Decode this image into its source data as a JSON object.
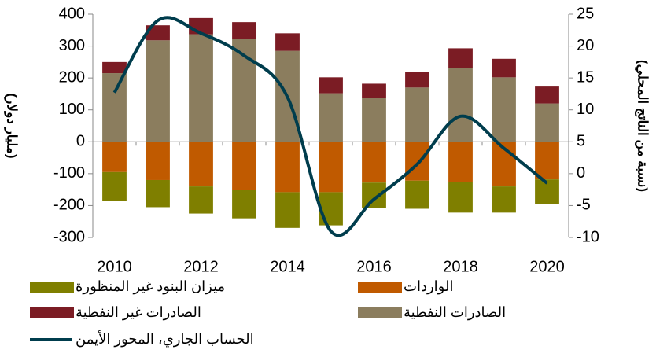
{
  "chart_data": {
    "type": "bar",
    "stacked": true,
    "categories": [
      "2010",
      null,
      "2012",
      null,
      "2014",
      null,
      "2016",
      null,
      "2018",
      null,
      "2020"
    ],
    "y_label": "(مليار دولار)",
    "y2_label": "(نسبة من الناتج المحلي)",
    "ylim": [
      -300,
      400
    ],
    "yticks": [
      -300,
      -200,
      -100,
      0,
      100,
      200,
      300,
      400
    ],
    "y2lim": [
      -10,
      25
    ],
    "y2ticks": [
      -10,
      -5,
      0,
      5,
      10,
      15,
      20,
      25
    ],
    "series": [
      {
        "name": "الصادرات النفطية",
        "color": "#8b7d5e",
        "values": [
          215,
          318,
          337,
          322,
          285,
          152,
          137,
          170,
          232,
          202,
          120
        ]
      },
      {
        "name": "الصادرات غير النفطية",
        "color": "#7b1c24",
        "values": [
          35,
          47,
          51,
          53,
          55,
          50,
          45,
          50,
          61,
          58,
          53
        ]
      },
      {
        "name": "الواردات",
        "color": "#c05a00",
        "values": [
          -95,
          -120,
          -140,
          -152,
          -158,
          -158,
          -128,
          -122,
          -125,
          -140,
          -118
        ]
      },
      {
        "name": "ميزان البنود غير المنظورة",
        "color": "#7f7f00",
        "values": [
          -90,
          -85,
          -85,
          -88,
          -112,
          -104,
          -80,
          -88,
          -97,
          -82,
          -77
        ]
      },
      {
        "name": "الحساب الجاري، المحور الأيمن",
        "color": "#003d4d",
        "type": "line",
        "axis": "y2",
        "values": [
          12.7,
          24,
          22,
          18.5,
          12,
          -9,
          -4,
          1.5,
          9,
          4,
          -1.5
        ]
      }
    ]
  }
}
